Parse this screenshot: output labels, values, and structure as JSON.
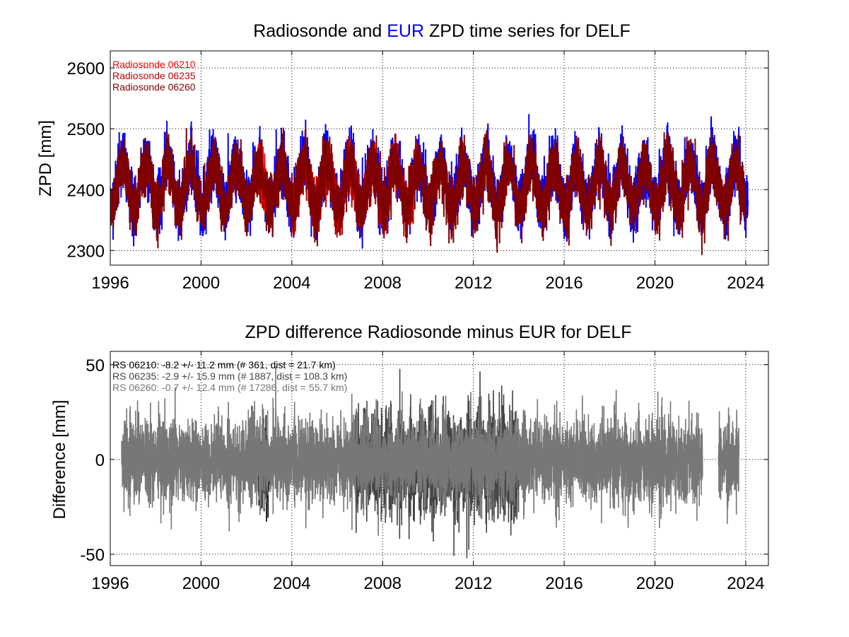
{
  "chart_data": [
    {
      "type": "line",
      "title_parts": [
        {
          "text": "Radiosonde and ",
          "color": "#000000"
        },
        {
          "text": "EUR",
          "color": "#0000ff"
        },
        {
          "text": " ZPD time series for DELF",
          "color": "#000000"
        }
      ],
      "xlabel": "",
      "ylabel": "ZPD [mm]",
      "xlim": [
        1996,
        2025
      ],
      "ylim": [
        2276,
        2628
      ],
      "xticks": [
        1996,
        2000,
        2004,
        2008,
        2012,
        2016,
        2020,
        2024
      ],
      "yticks": [
        2300,
        2400,
        2500,
        2600
      ],
      "grid": true,
      "legend_position": "top-left",
      "series": [
        {
          "name": "EUR",
          "color": "#0000ff",
          "x_start": 1996.0,
          "x_end": 2024.1,
          "mean": 2410,
          "amplitude": 38,
          "noise": 42,
          "seed": 11
        },
        {
          "name": "Radiosonde 06210",
          "color": "#ff0000",
          "x_start": 2002.5,
          "x_end": 2002.9,
          "mean": 2405,
          "amplitude": 35,
          "noise": 40,
          "seed": 23
        },
        {
          "name": "Radiosonde 06235",
          "color": "#c00000",
          "x_start": 2004.0,
          "x_end": 2009.5,
          "mean": 2405,
          "amplitude": 36,
          "noise": 40,
          "seed": 37
        },
        {
          "name": "Radiosonde 06260",
          "color": "#800000",
          "x_start": 1996.0,
          "x_end": 2024.0,
          "mean": 2405,
          "amplitude": 37,
          "noise": 40,
          "seed": 51
        }
      ],
      "legend": [
        "Radiosonde 06210",
        "Radiosonde 06235",
        "Radiosonde 06260"
      ],
      "legend_colors": [
        "#ff0000",
        "#c00000",
        "#800000"
      ]
    },
    {
      "type": "line",
      "title": "ZPD difference Radiosonde minus EUR for DELF",
      "xlabel": "",
      "ylabel": "Difference [mm]",
      "xlim": [
        1996,
        2025
      ],
      "ylim": [
        -56,
        57
      ],
      "xticks": [
        1996,
        2000,
        2004,
        2008,
        2012,
        2016,
        2020,
        2024
      ],
      "yticks": [
        -50,
        0,
        50
      ],
      "grid": true,
      "legend_position": "top-left",
      "series": [
        {
          "name": "RS 06210",
          "color": "#000000",
          "x_start": 2002.5,
          "x_end": 2003.0,
          "mean": -8.2,
          "std": 11.2,
          "seed": 7
        },
        {
          "name": "RS 06235",
          "color": "#444444",
          "x_start": 2006.8,
          "x_end": 2014.0,
          "mean": -2.9,
          "std": 15.9,
          "seed": 19
        },
        {
          "name": "RS 06260",
          "color": "#777777",
          "x_start": 1996.5,
          "x_end": 2023.7,
          "mean": -0.7,
          "std": 12.4,
          "seed": 29,
          "gap": [
            2022.1,
            2022.8
          ]
        }
      ],
      "legend": [
        "RS 06210: -8.2 +/- 11.2 mm (# 361, dist =  21.7 km)",
        "RS 06235: -2.9 +/- 15.9 mm (# 1887, dist = 108.3 km)",
        "RS 06260: -0.7 +/- 12.4 mm (# 17286, dist =  55.7 km)"
      ],
      "legend_colors": [
        "#000000",
        "#444444",
        "#777777"
      ]
    }
  ]
}
